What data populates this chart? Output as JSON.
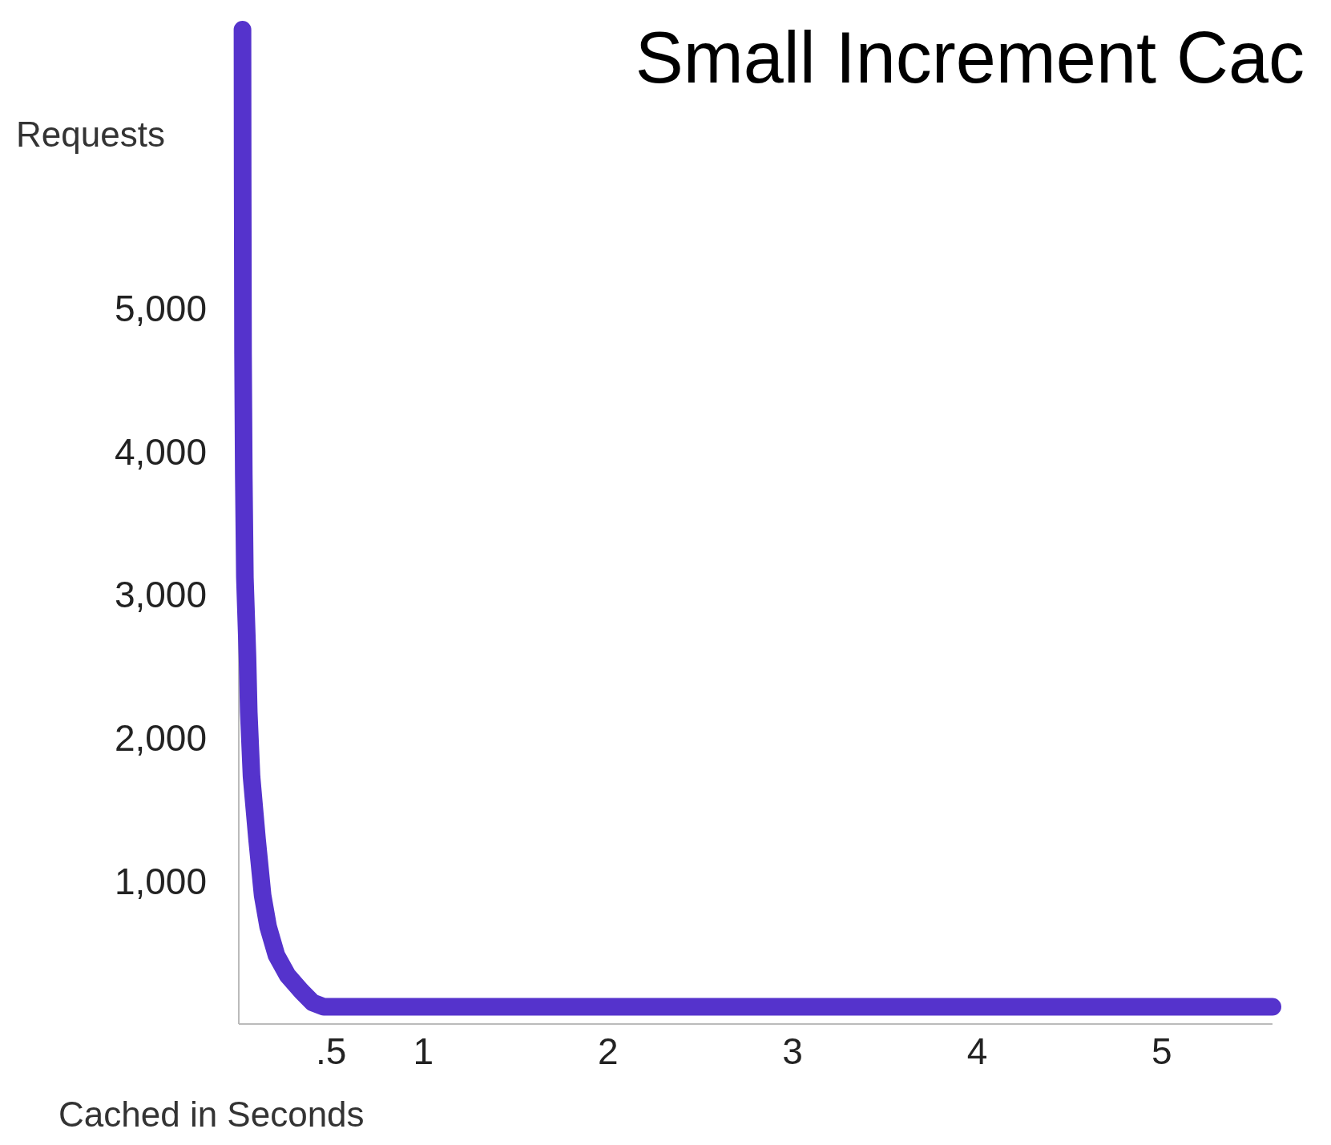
{
  "chart_data": {
    "type": "line",
    "title": "Small Increment Cac",
    "xlabel": "Cached in Seconds",
    "ylabel": "Requests",
    "x": [
      0.02,
      0.021,
      0.023,
      0.027,
      0.033,
      0.047,
      0.054,
      0.069,
      0.099,
      0.129,
      0.159,
      0.204,
      0.264,
      0.339,
      0.4,
      0.46,
      1,
      2,
      3,
      4,
      5,
      5.6
    ],
    "series": [
      {
        "color": "#5533cc",
        "values": [
          6950,
          5900,
          4680,
          3840,
          3120,
          2570,
          2180,
          1730,
          1290,
          900,
          680,
          480,
          340,
          230,
          150,
          120,
          120,
          120,
          120,
          120,
          120,
          120
        ]
      }
    ],
    "xlim": [
      0,
      5.6
    ],
    "xticks": [
      {
        "value": 0.5,
        "label": ".5"
      },
      1,
      2,
      3,
      4,
      5
    ],
    "ylim": [
      0,
      7000
    ],
    "yticks": [
      {
        "value": 1000,
        "label": "1,000"
      },
      {
        "value": 2000,
        "label": "2,000"
      },
      {
        "value": 3000,
        "label": "3,000"
      },
      {
        "value": 4000,
        "label": "4,000"
      },
      {
        "value": 5000,
        "label": "5,000"
      }
    ],
    "grid": false,
    "line_style": "solid"
  }
}
